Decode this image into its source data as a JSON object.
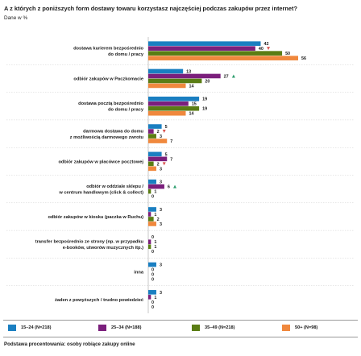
{
  "chart_data": {
    "type": "bar",
    "orientation": "horizontal",
    "title": "A z których z poniższych form dostawy towaru korzystasz najczęściej podczas zakupów przez internet?",
    "subtitle": "Dane w %",
    "categories": [
      [
        "dostawa kurierem bezpośrednio",
        "do domu / pracy"
      ],
      [
        "odbiór zakupów w Paczkomacie"
      ],
      [
        "dostawa pocztą bezpośrednio",
        "do domu / pracy"
      ],
      [
        "darmowa dostawa do domu",
        "z możliwością darmowego zwrotu"
      ],
      [
        "odbiór zakupów w placówce pocztowej"
      ],
      [
        "odbiór w oddziale sklepu /",
        "w centrum handlowym (click & collect)"
      ],
      [
        "odbiór zakupów w kiosku (paczka w Ruchu)"
      ],
      [
        "transfer bezpośrednio ze strony (np. w przypadku",
        "e-booków, utworów muzycznych itp.)"
      ],
      [
        "inna"
      ],
      [
        "żaden z powyższych / trudno powiedzieć"
      ]
    ],
    "series": [
      {
        "name": "15–24 (N=218)",
        "color": "#1a7fc1",
        "values": [
          42,
          13,
          19,
          5,
          5,
          3,
          3,
          0,
          3,
          3
        ]
      },
      {
        "name": "25–34 (N=188)",
        "color": "#7b1f7c",
        "values": [
          40,
          27,
          15,
          2,
          7,
          6,
          1,
          1,
          0,
          1
        ]
      },
      {
        "name": "35–49 (N=218)",
        "color": "#5a7d14",
        "values": [
          50,
          20,
          19,
          3,
          2,
          1,
          2,
          1,
          0,
          0
        ]
      },
      {
        "name": "50+ (N=98)",
        "color": "#f0883d",
        "values": [
          56,
          14,
          14,
          7,
          3,
          0,
          3,
          0,
          0,
          0
        ]
      }
    ],
    "markers": [
      {
        "category": 0,
        "series": 1,
        "symbol": "down",
        "color": "#d9534f"
      },
      {
        "category": 1,
        "series": 1,
        "symbol": "up",
        "color": "#2e9e6e"
      },
      {
        "category": 3,
        "series": 1,
        "symbol": "down",
        "color": "#d9534f"
      },
      {
        "category": 4,
        "series": 2,
        "symbol": "down",
        "color": "#d9534f"
      },
      {
        "category": 5,
        "series": 1,
        "symbol": "up",
        "color": "#2e9e6e"
      }
    ],
    "xlim": [
      0,
      56
    ],
    "grid": false,
    "legend_position": "bottom"
  },
  "base_note": "Podstawa procentowania: osoby robiące zakupy online"
}
